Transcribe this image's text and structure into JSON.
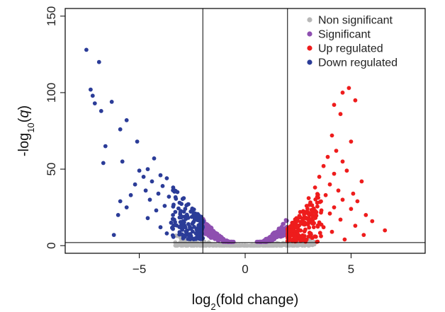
{
  "chart_data": {
    "type": "scatter",
    "title": "",
    "xlabel": "log2(fold change)",
    "ylabel": "-log10(q)",
    "xlim": [
      -8.5,
      8.5
    ],
    "ylim": [
      -5,
      155
    ],
    "xticks": [
      -5,
      0,
      5
    ],
    "yticks": [
      0,
      50,
      100,
      150
    ],
    "grid": false,
    "legend_position": "top-right",
    "thresholds": {
      "x": [
        -2,
        2
      ],
      "y": 2
    },
    "series": [
      {
        "name": "Non significant",
        "color": "#b8b8b8",
        "points": []
      },
      {
        "name": "Significant",
        "color": "#8e4fb0",
        "points": []
      },
      {
        "name": "Up regulated",
        "color": "#ee1c1c",
        "points": [
          [
            4.9,
            103
          ],
          [
            4.6,
            100
          ],
          [
            5.2,
            95
          ],
          [
            4.2,
            92
          ],
          [
            4.5,
            86
          ],
          [
            4.1,
            72
          ],
          [
            5.0,
            68
          ],
          [
            4.3,
            62
          ],
          [
            3.9,
            58
          ],
          [
            4.6,
            55
          ],
          [
            3.7,
            52
          ],
          [
            4.8,
            49
          ],
          [
            4.2,
            47
          ],
          [
            3.5,
            45
          ],
          [
            5.5,
            42
          ],
          [
            4.0,
            40
          ],
          [
            3.3,
            38
          ],
          [
            4.4,
            36
          ],
          [
            5.1,
            34
          ],
          [
            3.8,
            33
          ],
          [
            3.0,
            31
          ],
          [
            4.6,
            30
          ],
          [
            5.3,
            29
          ],
          [
            3.4,
            28
          ],
          [
            2.9,
            26
          ],
          [
            4.2,
            25
          ],
          [
            5.0,
            24
          ],
          [
            3.6,
            23
          ],
          [
            2.6,
            22
          ],
          [
            4.0,
            21
          ],
          [
            5.7,
            20
          ],
          [
            3.2,
            19
          ],
          [
            2.5,
            18
          ],
          [
            4.5,
            17
          ],
          [
            6.0,
            16
          ],
          [
            3.0,
            15
          ],
          [
            2.4,
            14
          ],
          [
            5.2,
            13
          ],
          [
            3.7,
            12
          ],
          [
            2.3,
            11
          ],
          [
            6.6,
            10
          ],
          [
            4.1,
            9
          ],
          [
            2.2,
            8
          ],
          [
            5.6,
            7
          ],
          [
            3.3,
            6
          ],
          [
            2.1,
            5
          ],
          [
            4.7,
            4
          ]
        ]
      },
      {
        "name": "Down regulated",
        "color": "#2b3c98",
        "points": [
          [
            -7.5,
            128
          ],
          [
            -6.9,
            120
          ],
          [
            -7.3,
            102
          ],
          [
            -7.2,
            98
          ],
          [
            -7.1,
            93
          ],
          [
            -6.8,
            88
          ],
          [
            -6.3,
            94
          ],
          [
            -5.6,
            82
          ],
          [
            -5.9,
            76
          ],
          [
            -6.6,
            65
          ],
          [
            -5.1,
            68
          ],
          [
            -6.7,
            54
          ],
          [
            -5.8,
            55
          ],
          [
            -4.3,
            57
          ],
          [
            -4.6,
            50
          ],
          [
            -5.0,
            49
          ],
          [
            -4.8,
            45
          ],
          [
            -4.0,
            46
          ],
          [
            -3.7,
            44
          ],
          [
            -4.4,
            42
          ],
          [
            -5.2,
            40
          ],
          [
            -3.9,
            39
          ],
          [
            -3.4,
            38
          ],
          [
            -4.7,
            36
          ],
          [
            -3.2,
            35
          ],
          [
            -4.1,
            34
          ],
          [
            -5.4,
            33
          ],
          [
            -3.6,
            32
          ],
          [
            -2.9,
            31
          ],
          [
            -4.5,
            30
          ],
          [
            -5.9,
            29
          ],
          [
            -3.1,
            28
          ],
          [
            -2.7,
            27
          ],
          [
            -3.8,
            26
          ],
          [
            -5.6,
            25
          ],
          [
            -2.5,
            24
          ],
          [
            -4.2,
            23
          ],
          [
            -3.3,
            22
          ],
          [
            -2.4,
            21
          ],
          [
            -6.0,
            20
          ],
          [
            -3.0,
            19
          ],
          [
            -4.6,
            18
          ],
          [
            -2.3,
            17
          ],
          [
            -3.5,
            15
          ],
          [
            -2.2,
            13
          ],
          [
            -4.0,
            12
          ],
          [
            -2.6,
            11
          ],
          [
            -2.1,
            9
          ],
          [
            -6.2,
            7
          ],
          [
            -3.7,
            8
          ]
        ]
      }
    ]
  }
}
